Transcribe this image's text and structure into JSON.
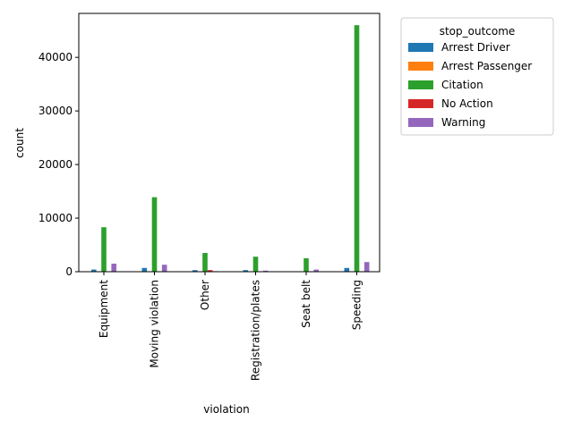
{
  "chart_data": {
    "type": "bar",
    "xlabel": "violation",
    "ylabel": "count",
    "categories": [
      "Equipment",
      "Moving violation",
      "Other",
      "Registration/plates",
      "Seat belt",
      "Speeding"
    ],
    "ylim": [
      0,
      48200
    ],
    "yticks": [
      0,
      10000,
      20000,
      30000,
      40000
    ],
    "yticklabels": [
      "0",
      "10000",
      "20000",
      "30000",
      "40000"
    ],
    "grid": false,
    "legend": {
      "title": "stop_outcome",
      "placement": "outside-top-right"
    },
    "series": [
      {
        "name": "Arrest Driver",
        "color": "#1f77b4",
        "values": [
          400,
          700,
          300,
          300,
          0,
          700
        ]
      },
      {
        "name": "Arrest Passenger",
        "color": "#ff7f0e",
        "values": [
          30,
          60,
          20,
          20,
          0,
          50
        ]
      },
      {
        "name": "Citation",
        "color": "#2ca02c",
        "values": [
          8300,
          13900,
          3500,
          2800,
          2500,
          46000
        ]
      },
      {
        "name": "No Action",
        "color": "#d62728",
        "values": [
          10,
          20,
          300,
          10,
          0,
          10
        ]
      },
      {
        "name": "Warning",
        "color": "#9467bd",
        "values": [
          1500,
          1300,
          100,
          200,
          400,
          1800
        ]
      }
    ]
  }
}
